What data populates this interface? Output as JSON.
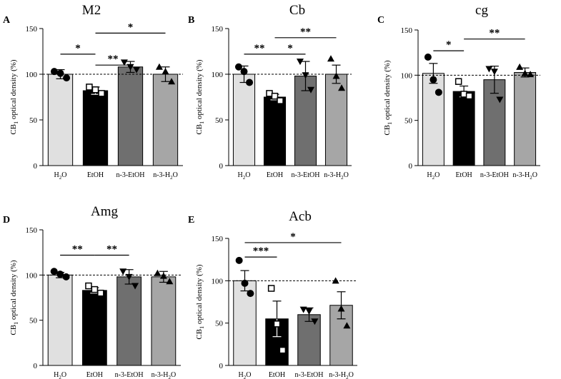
{
  "figure": {
    "colors": {
      "H2O": "#e0e0e0",
      "EtOH": "#000000",
      "n3EtOH": "#6f6f6f",
      "n3H2O": "#a6a6a6",
      "axis": "#000000"
    }
  },
  "chart_data": [
    {
      "type": "bar",
      "panel": "A",
      "title": "M2",
      "ylabel_main": "CB",
      "ylabel_sub": "1",
      "ylabel_rest": " optical density (%)",
      "ylim": [
        0,
        150
      ],
      "yticks": [
        "0",
        "50",
        "100",
        "150"
      ],
      "reference_line": 100,
      "categories": [
        "H2O",
        "EtOH",
        "n-3-EtOH",
        "n-3-H2O"
      ],
      "values": [
        100,
        82,
        108,
        100
      ],
      "errors": [
        5,
        4,
        6,
        8
      ],
      "points": [
        [
          103,
          101,
          96
        ],
        [
          86,
          83,
          79
        ],
        [
          113,
          108,
          105
        ],
        [
          108,
          103,
          92
        ]
      ],
      "markers": [
        "circle",
        "square",
        "triangle-down",
        "triangle-up"
      ],
      "significance": [
        {
          "from": 0,
          "to": 1,
          "level": 122,
          "label": "*"
        },
        {
          "from": 1,
          "to": 2,
          "level": 110,
          "label": "**"
        },
        {
          "from": 1,
          "to": 3,
          "level": 145,
          "label": "*"
        }
      ]
    },
    {
      "type": "bar",
      "panel": "B",
      "title": "Cb",
      "ylabel_main": "CB",
      "ylabel_sub": "1",
      "ylabel_rest": " optical density (%)",
      "ylim": [
        0,
        150
      ],
      "yticks": [
        "0",
        "50",
        "100",
        "150"
      ],
      "reference_line": 100,
      "categories": [
        "H2O",
        "EtOH",
        "n-3-EtOH",
        "n-3-H2O"
      ],
      "values": [
        100,
        75,
        98,
        100
      ],
      "errors": [
        9,
        3,
        16,
        10
      ],
      "points": [
        [
          108,
          103,
          91
        ],
        [
          79,
          76,
          71
        ],
        [
          114,
          99,
          83
        ],
        [
          117,
          98,
          85
        ]
      ],
      "markers": [
        "circle",
        "square",
        "triangle-down",
        "triangle-up"
      ],
      "significance": [
        {
          "from": 0,
          "to": 1,
          "level": 122,
          "label": "**"
        },
        {
          "from": 1,
          "to": 2,
          "level": 122,
          "label": "*"
        },
        {
          "from": 1,
          "to": 3,
          "level": 140,
          "label": "**"
        }
      ]
    },
    {
      "type": "bar",
      "panel": "C",
      "title": "cg",
      "ylabel_main": "CB",
      "ylabel_sub": "1",
      "ylabel_rest": " optical density (%)",
      "ylim": [
        0,
        150
      ],
      "yticks": [
        "0",
        "50",
        "100",
        "150"
      ],
      "reference_line": 100,
      "categories": [
        "H2O",
        "EtOH",
        "n-3-EtOH",
        "n-3-H2O"
      ],
      "values": [
        102,
        82,
        95,
        103
      ],
      "errors": [
        11,
        6,
        15,
        5
      ],
      "points": [
        [
          120,
          95,
          81
        ],
        [
          93,
          79,
          77
        ],
        [
          107,
          104,
          73
        ],
        [
          109,
          102,
          101
        ]
      ],
      "markers": [
        "circle",
        "square",
        "triangle-down",
        "triangle-up"
      ],
      "significance": [
        {
          "from": 0,
          "to": 1,
          "level": 127,
          "label": "*"
        },
        {
          "from": 1,
          "to": 3,
          "level": 140,
          "label": "**"
        }
      ]
    },
    {
      "type": "bar",
      "panel": "D",
      "title": "Amg",
      "ylabel_main": "CB",
      "ylabel_sub": "1",
      "ylabel_rest": " optical density (%)",
      "ylim": [
        0,
        150
      ],
      "yticks": [
        "0",
        "50",
        "100",
        "150"
      ],
      "reference_line": 100,
      "categories": [
        "H2O",
        "EtOH",
        "n-3-EtOH",
        "n-3-H2O"
      ],
      "values": [
        100,
        83,
        98,
        98
      ],
      "errors": [
        3,
        3,
        8,
        6
      ],
      "points": [
        [
          104,
          101,
          98
        ],
        [
          88,
          84,
          80
        ],
        [
          104,
          98,
          88
        ],
        [
          102,
          99,
          93
        ]
      ],
      "markers": [
        "circle",
        "square",
        "triangle-down",
        "triangle-up"
      ],
      "significance": [
        {
          "from": 0,
          "to": 1,
          "level": 122,
          "label": "**"
        },
        {
          "from": 1,
          "to": 2,
          "level": 122,
          "label": "**"
        }
      ]
    },
    {
      "type": "bar",
      "panel": "E",
      "title": "Acb",
      "ylabel_main": "CB",
      "ylabel_sub": "1",
      "ylabel_rest": " optical density (%)",
      "ylim": [
        0,
        150
      ],
      "yticks": [
        "0",
        "50",
        "100",
        "150"
      ],
      "reference_line": 100,
      "categories": [
        "H2O",
        "EtOH",
        "n-3-EtOH",
        "n-3-H2O"
      ],
      "values": [
        100,
        55,
        60,
        71
      ],
      "errors": [
        12,
        21,
        8,
        16
      ],
      "points": [
        [
          124,
          97,
          85
        ],
        [
          91,
          49,
          18
        ],
        [
          66,
          64,
          52
        ],
        [
          100,
          67,
          47
        ]
      ],
      "markers": [
        "circle",
        "square",
        "triangle-down",
        "triangle-up"
      ],
      "significance": [
        {
          "from": 0,
          "to": 1,
          "level": 128,
          "label": "***"
        },
        {
          "from": 0,
          "to": 3,
          "level": 145,
          "label": "*"
        }
      ]
    }
  ]
}
